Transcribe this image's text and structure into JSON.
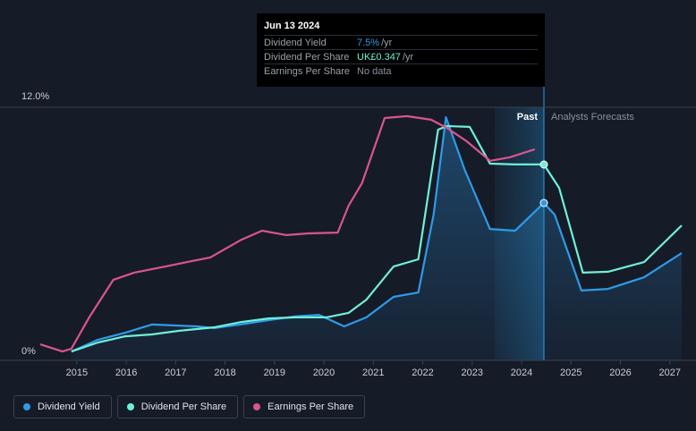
{
  "chart_data": {
    "type": "line",
    "xlim": [
      2014.17,
      2027.24
    ],
    "xticks": [
      2015,
      2016,
      2017,
      2018,
      2019,
      2020,
      2021,
      2022,
      2023,
      2024,
      2025,
      2026,
      2027
    ],
    "ylim": [
      0,
      12
    ],
    "yticks": [
      {
        "value": 0,
        "label": "0%"
      },
      {
        "value": 12,
        "label": "12.0%"
      }
    ],
    "regions": [
      "Past",
      "Analysts Forecasts"
    ],
    "series": [
      {
        "name": "Dividend Yield",
        "color": "#2e9be8",
        "x": [
          2014.89,
          2015.43,
          2015.98,
          2016.52,
          2017.06,
          2017.43,
          2017.79,
          2018.42,
          2018.88,
          2019.42,
          2019.9,
          2020.41,
          2020.86,
          2021.41,
          2021.91,
          2022.22,
          2022.47,
          2022.85,
          2023.36,
          2023.87,
          2024.45,
          2024.67,
          2025.21,
          2025.75,
          2026.48,
          2027.24
        ],
        "values": [
          0.42,
          0.98,
          1.31,
          1.7,
          1.65,
          1.61,
          1.53,
          1.74,
          1.91,
          2.08,
          2.16,
          1.61,
          2.04,
          3.01,
          3.22,
          6.91,
          11.53,
          9.03,
          6.23,
          6.15,
          7.46,
          6.91,
          3.31,
          3.39,
          3.94,
          5.09
        ]
      },
      {
        "name": "Dividend Per Share",
        "color": "#6ff0d8",
        "x": [
          2014.89,
          2015.43,
          2015.98,
          2016.52,
          2017.06,
          2017.79,
          2018.33,
          2018.88,
          2019.42,
          2020.05,
          2020.5,
          2020.86,
          2021.41,
          2021.91,
          2022.31,
          2022.49,
          2022.95,
          2023.36,
          2023.87,
          2024.45,
          2024.76,
          2025.24,
          2025.75,
          2026.48,
          2027.24
        ],
        "values": [
          0.42,
          0.85,
          1.14,
          1.23,
          1.4,
          1.57,
          1.82,
          1.99,
          2.04,
          2.04,
          2.25,
          2.88,
          4.45,
          4.79,
          10.94,
          11.11,
          11.07,
          9.33,
          9.29,
          9.29,
          8.18,
          4.16,
          4.2,
          4.66,
          6.4
        ]
      },
      {
        "name": "Earnings Per Share",
        "color": "#d9558f",
        "x": [
          2014.26,
          2014.71,
          2014.89,
          2015.25,
          2015.74,
          2016.16,
          2016.79,
          2017.33,
          2017.7,
          2018.33,
          2018.75,
          2019.24,
          2019.69,
          2020.28,
          2020.5,
          2020.77,
          2021.23,
          2021.68,
          2022.17,
          2022.49,
          2022.89,
          2023.36,
          2023.76,
          2024.27
        ],
        "values": [
          0.76,
          0.42,
          0.55,
          2.04,
          3.82,
          4.16,
          4.45,
          4.71,
          4.88,
          5.72,
          6.15,
          5.94,
          6.02,
          6.06,
          7.34,
          8.4,
          11.49,
          11.58,
          11.41,
          11.02,
          10.39,
          9.46,
          9.63,
          10.01
        ]
      }
    ]
  },
  "tooltip": {
    "date": "Jun 13 2024",
    "rows": [
      {
        "label": "Dividend Yield",
        "value": "7.5%",
        "unit": "/yr"
      },
      {
        "label": "Dividend Per Share",
        "value": "UK£0.347",
        "unit": "/yr"
      },
      {
        "label": "Earnings Per Share",
        "value": "No data"
      }
    ]
  }
}
